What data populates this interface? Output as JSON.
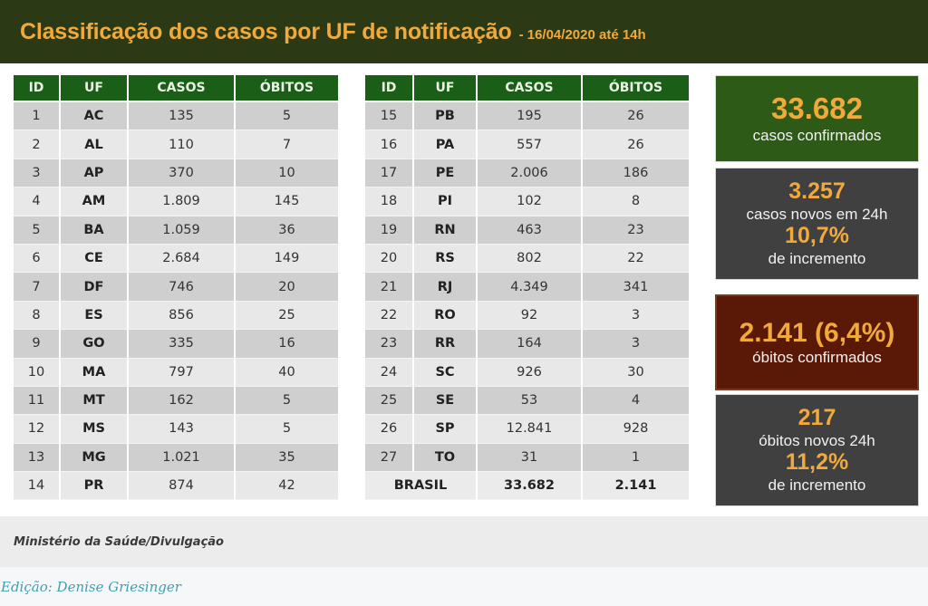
{
  "header": {
    "title": "Classificação dos casos por UF de notificação",
    "date": "- 16/04/2020 até 14h"
  },
  "colors": {
    "header_bg": "#2b3a14",
    "accent_orange": "#f2a93b",
    "table_header_green": "#1b5e17",
    "cases_card_green": "#2d5a17",
    "deaths_card_maroon": "#5a1807",
    "info_card_gray": "#404040",
    "credit_link_teal": "#3f9fb5"
  },
  "table_columns": [
    "ID",
    "UF",
    "CASOS",
    "ÓBITOS"
  ],
  "table_left": {
    "rows": [
      {
        "id": "1",
        "uf": "AC",
        "casos": "135",
        "obitos": "5"
      },
      {
        "id": "2",
        "uf": "AL",
        "casos": "110",
        "obitos": "7"
      },
      {
        "id": "3",
        "uf": "AP",
        "casos": "370",
        "obitos": "10"
      },
      {
        "id": "4",
        "uf": "AM",
        "casos": "1.809",
        "obitos": "145"
      },
      {
        "id": "5",
        "uf": "BA",
        "casos": "1.059",
        "obitos": "36"
      },
      {
        "id": "6",
        "uf": "CE",
        "casos": "2.684",
        "obitos": "149"
      },
      {
        "id": "7",
        "uf": "DF",
        "casos": "746",
        "obitos": "20"
      },
      {
        "id": "8",
        "uf": "ES",
        "casos": "856",
        "obitos": "25"
      },
      {
        "id": "9",
        "uf": "GO",
        "casos": "335",
        "obitos": "16"
      },
      {
        "id": "10",
        "uf": "MA",
        "casos": "797",
        "obitos": "40"
      },
      {
        "id": "11",
        "uf": "MT",
        "casos": "162",
        "obitos": "5"
      },
      {
        "id": "12",
        "uf": "MS",
        "casos": "143",
        "obitos": "5"
      },
      {
        "id": "13",
        "uf": "MG",
        "casos": "1.021",
        "obitos": "35"
      },
      {
        "id": "14",
        "uf": "PR",
        "casos": "874",
        "obitos": "42"
      }
    ]
  },
  "table_right": {
    "rows": [
      {
        "id": "15",
        "uf": "PB",
        "casos": "195",
        "obitos": "26"
      },
      {
        "id": "16",
        "uf": "PA",
        "casos": "557",
        "obitos": "26"
      },
      {
        "id": "17",
        "uf": "PE",
        "casos": "2.006",
        "obitos": "186"
      },
      {
        "id": "18",
        "uf": "PI",
        "casos": "102",
        "obitos": "8"
      },
      {
        "id": "19",
        "uf": "RN",
        "casos": "463",
        "obitos": "23"
      },
      {
        "id": "20",
        "uf": "RS",
        "casos": "802",
        "obitos": "22"
      },
      {
        "id": "21",
        "uf": "RJ",
        "casos": "4.349",
        "obitos": "341"
      },
      {
        "id": "22",
        "uf": "RO",
        "casos": "92",
        "obitos": "3"
      },
      {
        "id": "23",
        "uf": "RR",
        "casos": "164",
        "obitos": "3"
      },
      {
        "id": "24",
        "uf": "SC",
        "casos": "926",
        "obitos": "30"
      },
      {
        "id": "25",
        "uf": "SE",
        "casos": "53",
        "obitos": "4"
      },
      {
        "id": "26",
        "uf": "SP",
        "casos": "12.841",
        "obitos": "928"
      },
      {
        "id": "27",
        "uf": "TO",
        "casos": "31",
        "obitos": "1"
      }
    ],
    "total": {
      "label": "BRASIL",
      "casos": "33.682",
      "obitos": "2.141"
    }
  },
  "cards": {
    "confirmed_cases": {
      "value": "33.682",
      "label": "casos confirmados"
    },
    "new_cases": {
      "value": "3.257",
      "label": "casos novos em 24h",
      "pct": "10,7%",
      "pct_label": "de incremento"
    },
    "confirmed_deaths": {
      "value": "2.141 (6,4%)",
      "label": "óbitos confirmados"
    },
    "new_deaths": {
      "value": "217",
      "label": "óbitos novos 24h",
      "pct": "11,2%",
      "pct_label": "de incremento"
    }
  },
  "caption": "Ministério da Saúde/Divulgação",
  "credit": "Edição: Denise Griesinger"
}
